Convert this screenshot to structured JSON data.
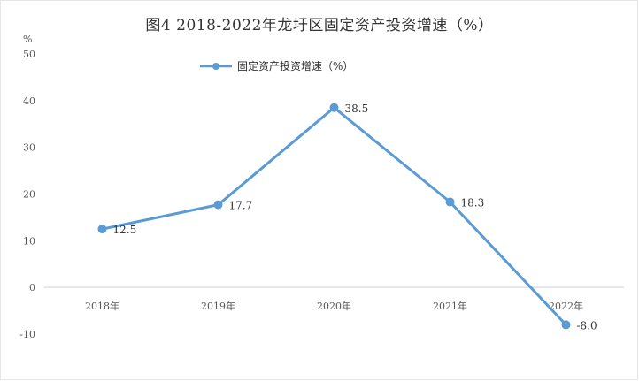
{
  "title": "图4   2018-2022年龙圩区固定资产投资增速（%）",
  "y_unit": "%",
  "colors": {
    "series": "#5b9bd5",
    "axis": "#d0d0d0",
    "text": "#333333"
  },
  "chart_data": {
    "type": "line",
    "title": "图4   2018-2022年龙圩区固定资产投资增速（%）",
    "xlabel": "",
    "ylabel": "%",
    "categories": [
      "2018年",
      "2019年",
      "2020年",
      "2021年",
      "2022年"
    ],
    "series": [
      {
        "name": "固定资产投资增速（%）",
        "values": [
          12.5,
          17.7,
          38.5,
          18.3,
          -8.0
        ]
      }
    ],
    "data_labels": [
      "12.5",
      "17.7",
      "38.5",
      "18.3",
      "-8.0"
    ],
    "y_ticks": [
      "50",
      "40",
      "30",
      "20",
      "10",
      "0",
      "-10"
    ],
    "ylim": [
      -10,
      50
    ],
    "grid": false,
    "legend_position": "top"
  }
}
